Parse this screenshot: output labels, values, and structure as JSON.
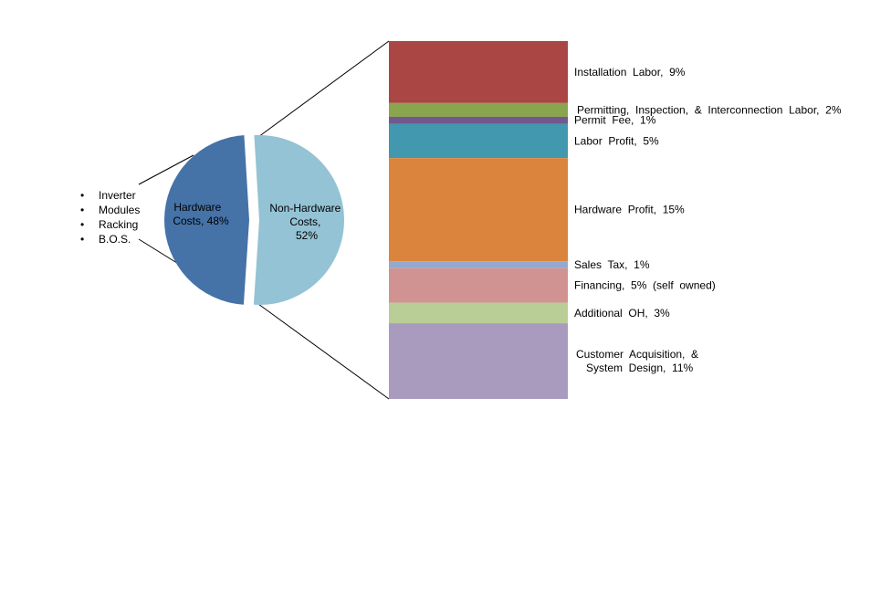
{
  "hardware_components": [
    "Inverter",
    "Modules",
    "Racking",
    "B.O.S."
  ],
  "pie_labels": {
    "hardware": [
      "Hardware",
      "Costs, 48%"
    ],
    "non_hardware": [
      "Non-Hardware",
      "Costs,",
      "52%"
    ]
  },
  "chart_data": [
    {
      "type": "pie",
      "categories": [
        "Hardware Costs",
        "Non-Hardware Costs"
      ],
      "values": [
        48,
        52
      ],
      "unit": "%",
      "colors": [
        "#4572a7",
        "#93c3d4"
      ]
    },
    {
      "type": "bar",
      "stacked": true,
      "categories": [
        "Installation Labor",
        "Permitting, Inspection, & Interconnection Labor",
        "Permit Fee",
        "Labor Profit",
        "Hardware Profit",
        "Sales Tax",
        "Financing",
        "Additional OH",
        "Customer Acquisition, & System Design"
      ],
      "values": [
        9,
        2,
        1,
        5,
        15,
        1,
        5,
        3,
        11
      ],
      "unit": "%",
      "labels": [
        [
          "Installation  Labor,  9%"
        ],
        [
          "Permitting,  Inspection,  &  Interconnection  Labor,  2%"
        ],
        [
          "Permit  Fee,  1%"
        ],
        [
          "Labor  Profit,  5%"
        ],
        [
          "Hardware  Profit,  15%"
        ],
        [
          "Sales  Tax,  1%"
        ],
        [
          "Financing,  5%  (self  owned)"
        ],
        [
          "Additional  OH,  3%"
        ],
        [
          "Customer  Acquisition,  &",
          "System  Design,  11%"
        ]
      ],
      "colors": [
        "#aa4643",
        "#89a54e",
        "#71588f",
        "#4198af",
        "#db843d",
        "#93a9cf",
        "#d19392",
        "#b9cd96",
        "#a99bbd"
      ]
    }
  ]
}
